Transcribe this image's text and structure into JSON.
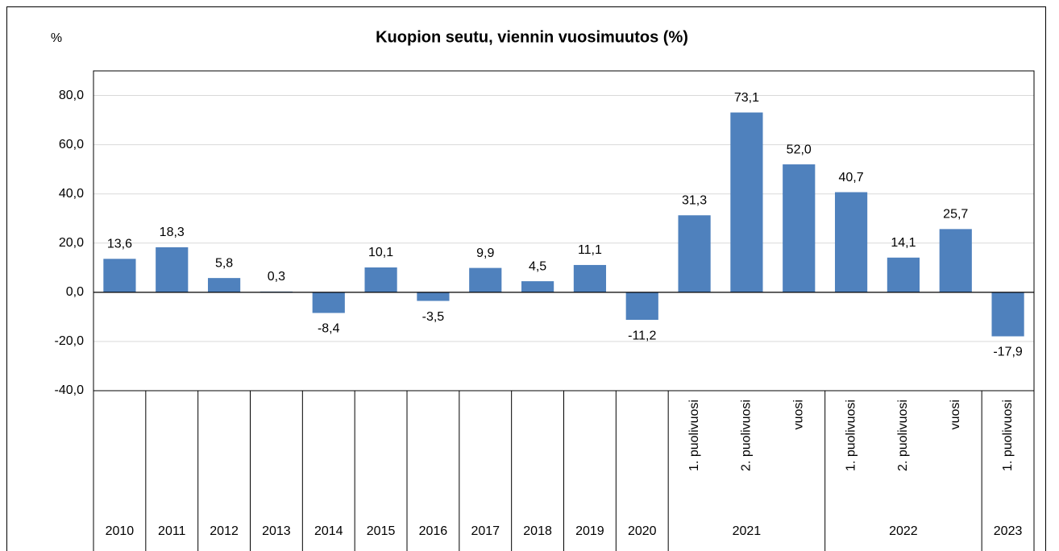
{
  "chart_data": {
    "type": "bar",
    "title": "Kuopion seutu, viennin vuosimuutos (%)",
    "y_label": "%",
    "groups": [
      {
        "label": "2010",
        "categories": [
          null
        ]
      },
      {
        "label": "2011",
        "categories": [
          null
        ]
      },
      {
        "label": "2012",
        "categories": [
          null
        ]
      },
      {
        "label": "2013",
        "categories": [
          null
        ]
      },
      {
        "label": "2014",
        "categories": [
          null
        ]
      },
      {
        "label": "2015",
        "categories": [
          null
        ]
      },
      {
        "label": "2016",
        "categories": [
          null
        ]
      },
      {
        "label": "2017",
        "categories": [
          null
        ]
      },
      {
        "label": "2018",
        "categories": [
          null
        ]
      },
      {
        "label": "2019",
        "categories": [
          null
        ]
      },
      {
        "label": "2020",
        "categories": [
          null
        ]
      },
      {
        "label": "2021",
        "categories": [
          "1. puolivuosi",
          "2. puolivuosi",
          "vuosi"
        ]
      },
      {
        "label": "2022",
        "categories": [
          "1. puolivuosi",
          "2. puolivuosi",
          "vuosi"
        ]
      },
      {
        "label": "2023",
        "categories": [
          "1. puolivuosi"
        ]
      }
    ],
    "values": [
      13.6,
      18.3,
      5.8,
      0.3,
      -8.4,
      10.1,
      -3.5,
      9.9,
      4.5,
      11.1,
      -11.2,
      31.3,
      73.1,
      52.0,
      40.7,
      14.1,
      25.7,
      -17.9
    ],
    "value_labels": [
      "13,6",
      "18,3",
      "5,8",
      "0,3",
      "-8,4",
      "10,1",
      "-3,5",
      "9,9",
      "4,5",
      "11,1",
      "-11,2",
      "31,3",
      "73,1",
      "52,0",
      "40,7",
      "14,1",
      "25,7",
      "-17,9"
    ],
    "color": "#4f81bd",
    "ylim": [
      -40,
      90
    ],
    "yticks": [
      {
        "value": -40,
        "label": "-40,0"
      },
      {
        "value": -20,
        "label": "-20,0"
      },
      {
        "value": 0,
        "label": "0,0"
      },
      {
        "value": 20,
        "label": "20,0"
      },
      {
        "value": 40,
        "label": "40,0"
      },
      {
        "value": 60,
        "label": "60,0"
      },
      {
        "value": 80,
        "label": "80,0"
      }
    ],
    "grid": true
  }
}
